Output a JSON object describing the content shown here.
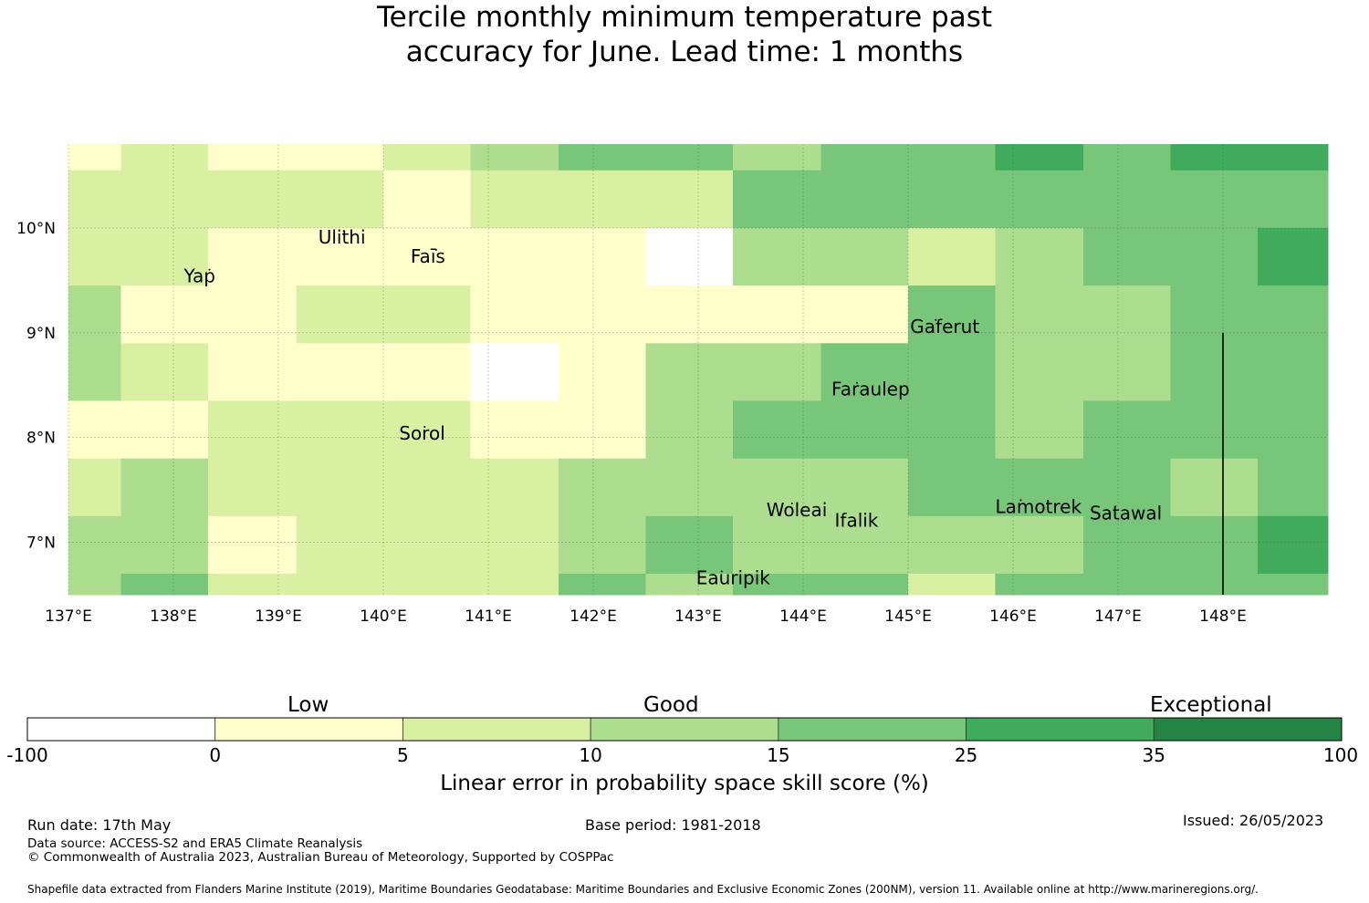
{
  "title_line1": "Tercile monthly minimum temperature past",
  "title_line2": "accuracy for June. Lead time: 1 months",
  "map": {
    "lon_range": [
      137.0,
      149.0
    ],
    "lat_range": [
      6.5,
      10.8
    ],
    "lon_ticks": [
      "137°E",
      "138°E",
      "139°E",
      "140°E",
      "141°E",
      "142°E",
      "143°E",
      "144°E",
      "145°E",
      "146°E",
      "147°E",
      "148°E"
    ],
    "lat_ticks": [
      "10°N",
      "9°N",
      "8°N",
      "7°N"
    ],
    "colors": [
      "#ffffff",
      "#ffffcc",
      "#d9f0a3",
      "#addd8e",
      "#78c679",
      "#41ab5d",
      "#238443"
    ],
    "col_edges": [
      137.0,
      137.5,
      138.33,
      139.17,
      140.0,
      140.83,
      141.67,
      142.5,
      143.33,
      144.17,
      145.0,
      145.83,
      146.67,
      147.5,
      148.33,
      149.0
    ],
    "row_edges": [
      10.8,
      10.55,
      10.0,
      9.45,
      8.9,
      8.35,
      7.8,
      7.25,
      6.7,
      6.5
    ],
    "grid_classes": [
      [
        1,
        2,
        1,
        1,
        2,
        3,
        4,
        4,
        3,
        4,
        4,
        5,
        4,
        5,
        5
      ],
      [
        2,
        2,
        2,
        2,
        1,
        2,
        2,
        2,
        4,
        4,
        4,
        4,
        4,
        4,
        4
      ],
      [
        2,
        2,
        1,
        1,
        1,
        1,
        1,
        0,
        3,
        3,
        2,
        3,
        4,
        4,
        5
      ],
      [
        3,
        1,
        1,
        2,
        2,
        1,
        1,
        1,
        1,
        1,
        4,
        3,
        3,
        4,
        4
      ],
      [
        3,
        2,
        1,
        1,
        1,
        0,
        1,
        3,
        3,
        4,
        4,
        3,
        3,
        4,
        4
      ],
      [
        1,
        1,
        2,
        2,
        2,
        1,
        1,
        3,
        4,
        4,
        4,
        3,
        4,
        4,
        4
      ],
      [
        2,
        3,
        2,
        2,
        2,
        2,
        3,
        3,
        3,
        3,
        4,
        4,
        4,
        3,
        4
      ],
      [
        3,
        3,
        1,
        2,
        2,
        2,
        3,
        4,
        3,
        3,
        3,
        3,
        4,
        4,
        5
      ],
      [
        3,
        4,
        2,
        2,
        2,
        2,
        4,
        3,
        4,
        4,
        2,
        4,
        4,
        4,
        4
      ]
    ],
    "places": [
      {
        "name": "Ulithi",
        "lon": 139.38,
        "lat": 9.85
      },
      {
        "name": "Faīs",
        "lon": 140.26,
        "lat": 9.67
      },
      {
        "name": "Yap",
        "lon": 138.1,
        "lat": 9.48
      },
      {
        "name": "Gaferut",
        "lon": 145.02,
        "lat": 9.0
      },
      {
        "name": "Faraulep",
        "lon": 144.27,
        "lat": 8.4
      },
      {
        "name": "Sorol",
        "lon": 140.15,
        "lat": 7.98
      },
      {
        "name": "Woleai",
        "lon": 143.65,
        "lat": 7.25
      },
      {
        "name": "Lamotrek",
        "lon": 145.83,
        "lat": 7.28
      },
      {
        "name": "Satawal",
        "lon": 146.73,
        "lat": 7.22
      },
      {
        "name": "Ifalik",
        "lon": 144.3,
        "lat": 7.15
      },
      {
        "name": "Eauripik",
        "lon": 142.98,
        "lat": 6.6
      }
    ],
    "boundary_lon": 148.0,
    "boundary_lat_top": 9.0
  },
  "colorbar": {
    "ticks": [
      "-100",
      "0",
      "5",
      "10",
      "15",
      "25",
      "35",
      "100"
    ],
    "category_low": "Low",
    "category_good": "Good",
    "category_exceptional": "Exceptional",
    "axis_label": "Linear error in probability space skill score (%)"
  },
  "footer": {
    "run_date": "Run date: 17th May",
    "base_period": "Base period: 1981-2018",
    "issued": "Issued: 26/05/2023",
    "data_source": "Data source: ACCESS-S2 and ERA5 Climate Reanalysis",
    "copyright": "© Commonwealth of Australia 2023, Australian Bureau of Meteorology, Supported by COSPPac",
    "shapefile": "Shapefile data extracted from Flanders Marine Institute (2019), Maritime Boundaries Geodatabase: Maritime Boundaries and Exclusive Economic Zones (200NM), version 11. Available online at http://www.marineregions.org/."
  }
}
